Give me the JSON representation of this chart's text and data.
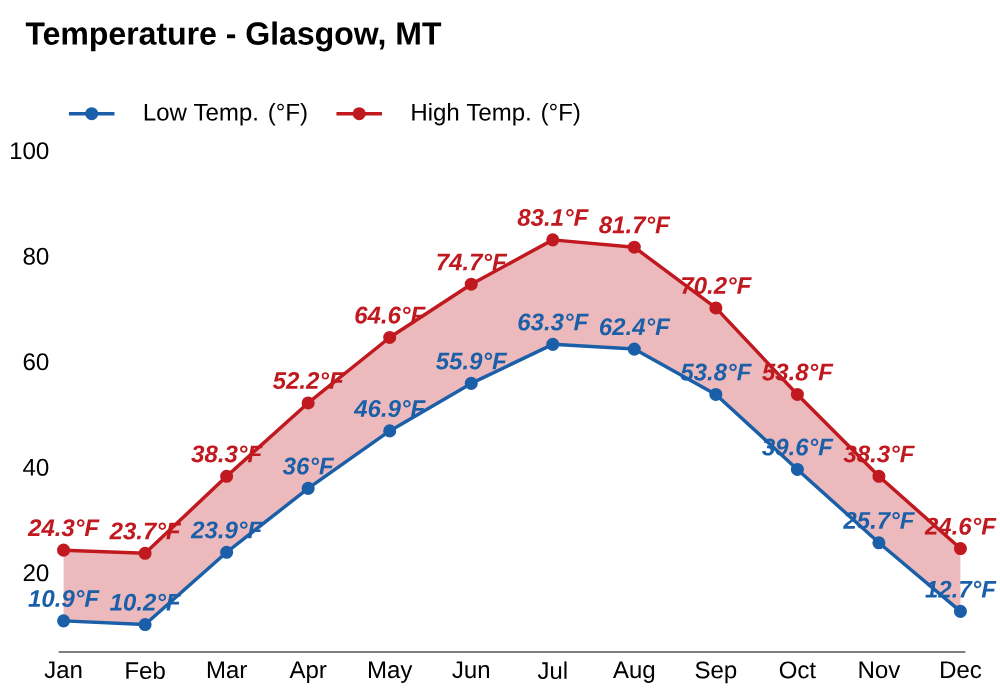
{
  "chart_data": {
    "type": "line",
    "title": "Temperature - Glasgow, MT",
    "categories": [
      "Jan",
      "Feb",
      "Mar",
      "Apr",
      "May",
      "Jun",
      "Jul",
      "Aug",
      "Sep",
      "Oct",
      "Nov",
      "Dec"
    ],
    "series": [
      {
        "name": "Low Temp. (°F)",
        "color": "#1a5fa8",
        "values": [
          10.9,
          10.2,
          23.9,
          36,
          46.9,
          55.9,
          63.3,
          62.4,
          53.8,
          39.6,
          25.7,
          12.7
        ],
        "value_labels": [
          "10.9°F",
          "10.2°F",
          "23.9°F",
          "36°F",
          "46.9°F",
          "55.9°F",
          "63.3°F",
          "62.4°F",
          "53.8°F",
          "39.6°F",
          "25.7°F",
          "12.7°F"
        ]
      },
      {
        "name": "High Temp. (°F)",
        "color": "#c0191f",
        "values": [
          24.3,
          23.7,
          38.3,
          52.2,
          64.6,
          74.7,
          83.1,
          81.7,
          70.2,
          53.8,
          38.3,
          24.6
        ],
        "value_labels": [
          "24.3°F",
          "23.7°F",
          "38.3°F",
          "52.2°F",
          "64.6°F",
          "74.7°F",
          "83.1°F",
          "81.7°F",
          "70.2°F",
          "53.8°F",
          "38.3°F",
          "24.6°F"
        ],
        "lower": [
          10.9,
          10.2,
          23.9,
          36,
          46.9,
          55.9,
          63.3,
          62.4,
          53.8,
          39.6,
          25.7,
          12.7
        ],
        "upper": [
          24.3,
          23.7,
          38.3,
          52.2,
          64.6,
          74.7,
          83.1,
          81.7,
          70.2,
          53.8,
          38.3,
          24.6
        ]
      }
    ],
    "ylim": [
      5,
      100
    ],
    "yticks": [
      20,
      40,
      60,
      80,
      100
    ],
    "marker": "circle",
    "line_style": "solid",
    "legend": "top left"
  }
}
